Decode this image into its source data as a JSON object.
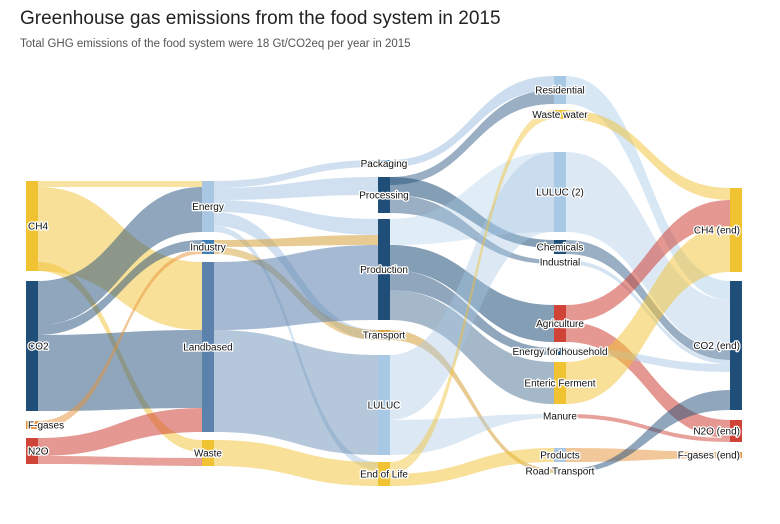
{
  "header": {
    "title": "Greenhouse gas emissions from the food system in 2015",
    "subtitle": "Total GHG emissions of the food system were 18 Gt/CO2eq per year in 2015"
  },
  "colors": {
    "co2": "#1f4e79",
    "ch4": "#f1c232",
    "n2o": "#cf4436",
    "fgas": "#e69138",
    "energy": "#a9c7e3",
    "landbased": "#5b82ad",
    "waste": "#f1c232",
    "industry": "#3f7fb5",
    "packaging": "#2a7fc9",
    "luluc": "#a7c9e6",
    "transport": "#d6a13a",
    "endoflife": "#f1c232"
  },
  "nodes": {
    "ch4": "CH4",
    "co2": "CO2",
    "fgases": "F-gases",
    "n2o": "N2O",
    "energy": "Energy",
    "industry": "Industry",
    "landbased": "Landbased",
    "waste": "Waste",
    "packaging": "Packaging",
    "processing": "Processing",
    "production": "Production",
    "transport": "Transport",
    "luluc": "LULUC",
    "endoflife": "End of Life",
    "residential": "Residential",
    "wastewater": "Waste water",
    "luluc2": "LULUC (2)",
    "chemicals": "Chemicals",
    "industrial": "Industrial",
    "agriculture": "Agriculture",
    "energyhousehold": "Energy for household",
    "entericferment": "Enteric Ferment",
    "manure": "Manure",
    "products": "Products",
    "roadtransport": "Road Transport",
    "ch4end": "CH4 (end)",
    "co2end": "CO2 (end)",
    "n2oend": "N2O (end)",
    "fgasesend": "F-gases (end)"
  }
}
